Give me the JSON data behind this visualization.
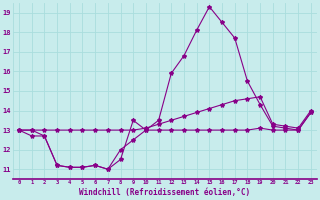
{
  "xlabel": "Windchill (Refroidissement éolien,°C)",
  "bg_color": "#c8ecec",
  "line_color": "#880088",
  "grid_color": "#aadddd",
  "xlim": [
    -0.5,
    23.5
  ],
  "ylim": [
    10.5,
    19.5
  ],
  "yticks": [
    11,
    12,
    13,
    14,
    15,
    16,
    17,
    18,
    19
  ],
  "xticks": [
    0,
    1,
    2,
    3,
    4,
    5,
    6,
    7,
    8,
    9,
    10,
    11,
    12,
    13,
    14,
    15,
    16,
    17,
    18,
    19,
    20,
    21,
    22,
    23
  ],
  "series1_x": [
    0,
    1,
    2,
    3,
    4,
    5,
    6,
    7,
    8,
    9,
    10,
    11,
    12,
    13,
    14,
    15,
    16,
    17,
    18,
    19,
    20,
    21,
    22,
    23
  ],
  "series1_y": [
    13.0,
    12.7,
    12.7,
    11.2,
    11.1,
    11.1,
    11.2,
    11.0,
    11.5,
    13.5,
    13.0,
    13.0,
    13.0,
    13.0,
    13.0,
    13.0,
    13.0,
    13.0,
    13.0,
    13.1,
    13.0,
    13.0,
    13.0,
    13.9
  ],
  "series2_x": [
    0,
    1,
    2,
    3,
    4,
    5,
    6,
    7,
    8,
    9,
    10,
    11,
    12,
    13,
    14,
    15,
    16,
    17,
    18,
    19,
    20,
    21,
    22,
    23
  ],
  "series2_y": [
    13.0,
    13.0,
    13.0,
    13.0,
    13.0,
    13.0,
    13.0,
    13.0,
    13.0,
    13.0,
    13.1,
    13.3,
    13.5,
    13.7,
    13.9,
    14.1,
    14.3,
    14.5,
    14.6,
    14.7,
    13.3,
    13.2,
    13.1,
    14.0
  ],
  "series3_x": [
    0,
    1,
    2,
    3,
    4,
    5,
    6,
    7,
    8,
    9,
    10,
    11,
    12,
    13,
    14,
    15,
    16,
    17,
    18,
    19,
    20,
    21,
    22,
    23
  ],
  "series3_y": [
    13.0,
    13.0,
    12.7,
    11.2,
    11.1,
    11.1,
    11.2,
    11.0,
    12.0,
    12.5,
    13.0,
    13.5,
    15.9,
    16.8,
    18.1,
    19.3,
    18.5,
    17.7,
    15.5,
    14.3,
    13.2,
    13.1,
    13.0,
    13.9
  ]
}
